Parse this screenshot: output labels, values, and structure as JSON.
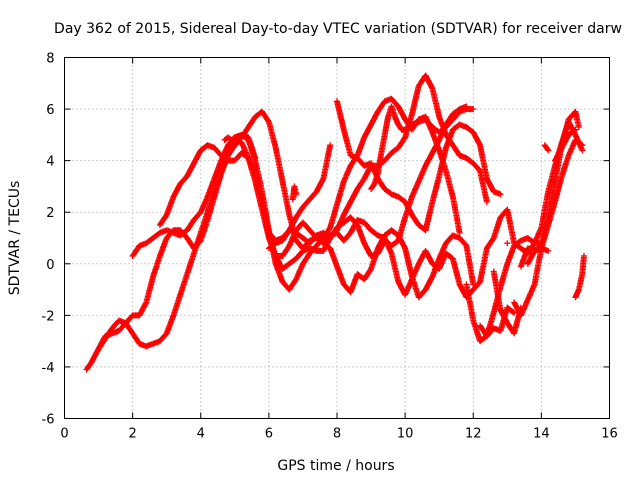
{
  "chart_data": {
    "type": "scatter",
    "title": "Day 362 of 2015, Sidereal Day-to-day VTEC variation (SDTVAR) for receiver darw",
    "xlabel": "GPS time / hours",
    "ylabel": "SDTVAR / TECUs",
    "xlim": [
      0,
      16
    ],
    "ylim": [
      -6,
      8
    ],
    "xticks": [
      "0",
      "2",
      "4",
      "6",
      "8",
      "10",
      "12",
      "14",
      "16"
    ],
    "yticks": [
      "-6",
      "-4",
      "-2",
      "0",
      "2",
      "4",
      "6",
      "8"
    ],
    "grid": true,
    "marker": "+",
    "color": "#ff0000",
    "series": [
      {
        "x": [
          0.65,
          0.8,
          1.0,
          1.2,
          1.4,
          1.6,
          1.8,
          2.0,
          2.2,
          2.4,
          2.6,
          2.8,
          3.0,
          3.2,
          3.4,
          3.6,
          3.8,
          4.0,
          4.2,
          4.4,
          4.6,
          4.8,
          5.0,
          5.2,
          5.4,
          5.6,
          5.8,
          6.0,
          6.2,
          6.4,
          6.6,
          6.8,
          7.0,
          7.2,
          7.4,
          7.6,
          7.8,
          8.0,
          8.2,
          8.4,
          8.6,
          8.8,
          9.0,
          9.2,
          9.4,
          9.6,
          9.8,
          10.0,
          10.2,
          10.4,
          10.6,
          10.8,
          11.0,
          11.2,
          11.4,
          11.6,
          11.8
        ],
        "y": [
          -4.1,
          -3.8,
          -3.3,
          -2.9,
          -2.5,
          -2.2,
          -2.3,
          -2.7,
          -3.1,
          -3.2,
          -3.1,
          -3.0,
          -2.7,
          -2.0,
          -1.2,
          -0.4,
          0.4,
          1.2,
          2.0,
          2.8,
          3.6,
          4.3,
          4.8,
          4.7,
          4.1,
          3.2,
          2.1,
          1.0,
          0.3,
          -0.2,
          0.0,
          0.2,
          0.5,
          0.6,
          0.5,
          0.5,
          1.0,
          1.4,
          1.6,
          1.8,
          1.5,
          0.8,
          0.3,
          0.4,
          0.9,
          0.7,
          0.9,
          1.8,
          2.6,
          3.2,
          3.8,
          4.3,
          4.8,
          5.4,
          5.8,
          6.0,
          6.1
        ]
      },
      {
        "x": [
          2.0,
          2.2,
          2.4,
          2.6,
          2.8,
          3.0,
          3.2,
          3.4,
          3.6,
          3.8,
          4.0,
          4.2,
          4.4,
          4.6,
          4.8,
          5.0,
          5.2,
          5.4,
          5.6,
          5.8,
          6.0,
          6.2,
          6.4,
          6.6,
          6.8,
          7.0,
          7.2,
          7.4,
          7.6,
          7.8,
          8.0,
          8.2,
          8.4,
          8.6,
          8.8,
          9.0,
          9.2,
          9.4,
          9.6,
          9.8,
          10.0,
          10.2,
          10.4,
          10.6,
          10.8,
          11.0,
          11.2,
          11.4,
          11.6,
          11.8,
          12.0,
          12.2,
          12.4,
          12.6,
          12.8,
          13.0,
          13.2,
          13.4,
          13.6,
          13.8,
          14.0
        ],
        "y": [
          0.3,
          0.7,
          0.8,
          1.0,
          1.2,
          1.3,
          1.2,
          1.1,
          1.3,
          1.7,
          2.0,
          2.6,
          3.3,
          4.0,
          4.6,
          4.9,
          5.0,
          4.8,
          4.0,
          2.8,
          1.3,
          0.0,
          -0.7,
          -1.0,
          -0.6,
          0.0,
          0.4,
          0.7,
          1.0,
          1.4,
          2.3,
          3.2,
          3.8,
          4.2,
          4.9,
          5.4,
          5.9,
          6.3,
          6.4,
          6.1,
          5.6,
          5.2,
          5.6,
          5.7,
          5.1,
          4.4,
          3.6,
          2.6,
          1.2,
          -0.8,
          -2.2,
          -3.0,
          -2.8,
          -1.9,
          -0.9,
          0.0,
          0.7,
          0.9,
          1.0,
          0.8,
          0.8
        ]
      },
      {
        "x": [
          1.0,
          1.2,
          1.4,
          1.6,
          1.8,
          2.0,
          2.2,
          2.4,
          2.6,
          2.8,
          3.0,
          3.2,
          3.4,
          3.6,
          3.8,
          4.0,
          4.2,
          4.4,
          4.6,
          4.8,
          5.0,
          5.2,
          5.4,
          5.6,
          5.8,
          6.0,
          6.2,
          6.4,
          6.6,
          6.8,
          7.0,
          7.2,
          7.4,
          7.6,
          7.8,
          8.0,
          8.2,
          8.4,
          8.6,
          8.8,
          9.0,
          9.2,
          9.4,
          9.6,
          9.8,
          10.0,
          10.2,
          10.4,
          10.6,
          10.8,
          11.0,
          11.2,
          11.4,
          11.6,
          11.8,
          12.0,
          12.2,
          12.4,
          12.6,
          12.8,
          13.0,
          13.2,
          13.4,
          13.6,
          13.8,
          14.0,
          14.2,
          14.4,
          14.6,
          14.8,
          15.0,
          15.1
        ],
        "y": [
          -3.3,
          -2.8,
          -2.7,
          -2.6,
          -2.3,
          -2.0,
          -2.0,
          -1.5,
          -0.5,
          0.3,
          1.0,
          1.3,
          1.3,
          1.0,
          0.6,
          0.9,
          1.7,
          2.6,
          3.5,
          4.2,
          4.6,
          4.9,
          5.3,
          5.7,
          5.9,
          5.5,
          4.5,
          3.2,
          1.9,
          0.9,
          0.6,
          0.9,
          1.0,
          0.8,
          0.6,
          -0.1,
          -0.8,
          -1.1,
          -0.4,
          -0.6,
          -0.2,
          0.6,
          1.1,
          1.3,
          1.1,
          0.6,
          -0.5,
          -1.3,
          -1.0,
          -0.5,
          0.2,
          0.8,
          1.1,
          1.0,
          0.7,
          -0.8,
          -2.4,
          -2.8,
          -2.5,
          -2.6,
          -1.7,
          -1.9,
          -0.1,
          0.6,
          0.5,
          0.7,
          1.8,
          3.2,
          4.6,
          5.6,
          5.9,
          5.3
        ]
      },
      {
        "x": [
          2.8,
          3.0,
          3.2,
          3.4,
          3.6,
          3.8,
          4.0,
          4.2,
          4.4,
          4.6,
          4.8,
          5.0,
          5.2,
          5.4,
          5.6,
          5.8,
          6.0,
          6.2,
          6.4,
          6.6,
          6.8,
          7.0,
          7.2,
          7.4,
          7.6,
          7.8,
          8.0,
          8.2,
          8.4,
          8.6,
          8.8,
          9.0,
          9.2,
          9.4,
          9.6,
          9.8,
          10.0,
          10.2,
          10.4,
          10.6,
          10.8,
          11.0,
          11.2,
          11.4,
          11.6,
          11.8,
          12.0,
          12.2,
          12.4,
          12.6,
          12.8,
          13.0,
          13.2,
          13.4,
          13.6,
          13.8,
          14.0,
          14.2,
          14.4,
          14.6,
          14.8,
          15.0,
          15.2
        ],
        "y": [
          1.5,
          1.9,
          2.6,
          3.1,
          3.4,
          3.9,
          4.4,
          4.6,
          4.5,
          4.2,
          4.0,
          4.0,
          4.3,
          4.1,
          3.5,
          2.4,
          1.1,
          0.3,
          0.3,
          0.7,
          1.3,
          1.6,
          1.3,
          1.0,
          0.9,
          1.1,
          1.2,
          0.9,
          1.2,
          1.7,
          1.6,
          1.3,
          1.1,
          1.0,
          0.4,
          -0.7,
          -1.2,
          -0.6,
          0.0,
          0.5,
          0.0,
          -0.2,
          0.4,
          0.2,
          -0.8,
          -1.3,
          -1.0,
          -0.7,
          0.6,
          1.0,
          1.8,
          2.1,
          0.8,
          0.6,
          0.4,
          0.8,
          1.4,
          2.8,
          3.8,
          4.7,
          5.5,
          5.0,
          4.4
        ]
      },
      {
        "x": [
          6.0,
          6.2,
          6.4,
          6.6,
          6.8,
          7.0,
          7.2,
          7.4,
          7.6,
          7.8,
          8.0,
          8.2,
          8.4,
          8.6,
          8.8,
          9.0,
          9.2,
          9.4,
          9.6,
          9.8,
          10.0,
          10.2,
          10.4,
          10.6,
          10.8,
          11.0,
          11.2,
          11.4,
          11.6,
          11.8,
          12.0,
          12.2,
          12.4,
          12.6,
          12.8,
          13.0,
          13.2,
          13.4,
          13.6,
          13.8,
          14.0,
          14.2,
          14.4,
          14.6,
          14.8,
          15.0,
          15.2
        ],
        "y": [
          0.6,
          0.8,
          0.9,
          1.3,
          1.8,
          2.2,
          2.5,
          2.8,
          3.3,
          4.6,
          6.3,
          5.2,
          4.2,
          4.1,
          3.8,
          3.9,
          3.3,
          2.9,
          2.7,
          2.6,
          2.4,
          1.9,
          1.5,
          1.3,
          2.4,
          3.4,
          4.5,
          5.2,
          5.4,
          5.3,
          5.1,
          4.6,
          3.3,
          2.8,
          2.7,
          0.8,
          -1.5,
          -2.0,
          -1.4,
          -0.8,
          0.6,
          1.5,
          2.4,
          3.4,
          4.2,
          4.8,
          4.6
        ]
      },
      {
        "x": [
          4.7,
          4.8,
          4.9,
          5.0,
          5.2,
          5.4,
          5.6,
          5.8,
          6.0,
          6.2,
          6.4,
          6.6,
          6.8,
          7.0,
          7.2,
          7.4,
          7.6,
          7.8,
          8.0,
          8.2,
          8.4,
          8.6,
          8.8,
          9.0,
          9.2,
          9.4,
          9.6,
          9.8,
          10.0,
          10.2,
          10.4,
          10.6,
          10.8,
          11.0,
          11.2,
          11.4,
          11.6,
          11.8,
          12.0,
          12.2,
          12.4,
          12.6,
          12.8,
          13.0,
          13.2,
          13.4,
          13.6,
          13.8,
          14.0,
          14.2,
          14.4,
          14.6,
          14.8,
          15.0
        ],
        "y": [
          4.8,
          4.9,
          4.8,
          4.9,
          5.0,
          4.9,
          4.1,
          2.4,
          1.2,
          0.9,
          1.0,
          1.3,
          1.2,
          1.0,
          0.8,
          1.1,
          1.2,
          1.0,
          1.3,
          1.9,
          2.4,
          2.9,
          3.3,
          3.8,
          3.8,
          4.0,
          4.3,
          4.5,
          4.9,
          5.8,
          6.9,
          7.3,
          6.8,
          5.7,
          5.0,
          4.6,
          4.2,
          4.1,
          3.9,
          3.6,
          2.4,
          -0.3,
          -1.8,
          -2.3,
          -2.7,
          -1.7,
          0.0,
          0.5,
          0.6,
          0.5,
          4.0,
          4.5,
          5.0,
          5.2
        ]
      },
      {
        "x": [
          9.0,
          9.1,
          9.2,
          9.3,
          9.4,
          9.5,
          9.6,
          9.7,
          9.8,
          9.9,
          10.0,
          10.2,
          10.4,
          10.6,
          10.8,
          11.0,
          11.2,
          11.4,
          11.6,
          11.8,
          12.0
        ],
        "y": [
          2.9,
          3.1,
          3.5,
          4.3,
          5.0,
          5.7,
          6.1,
          5.7,
          5.4,
          5.2,
          5.2,
          5.4,
          5.5,
          5.6,
          5.3,
          5.1,
          5.3,
          5.6,
          5.9,
          6.0,
          6.0
        ]
      },
      {
        "x": [
          6.7,
          6.75,
          6.8,
          15.0,
          15.1,
          15.2,
          15.25,
          14.1,
          14.2
        ],
        "y": [
          2.5,
          3.0,
          2.7,
          -1.3,
          -1.0,
          -0.4,
          0.3,
          4.6,
          4.4
        ]
      }
    ]
  }
}
